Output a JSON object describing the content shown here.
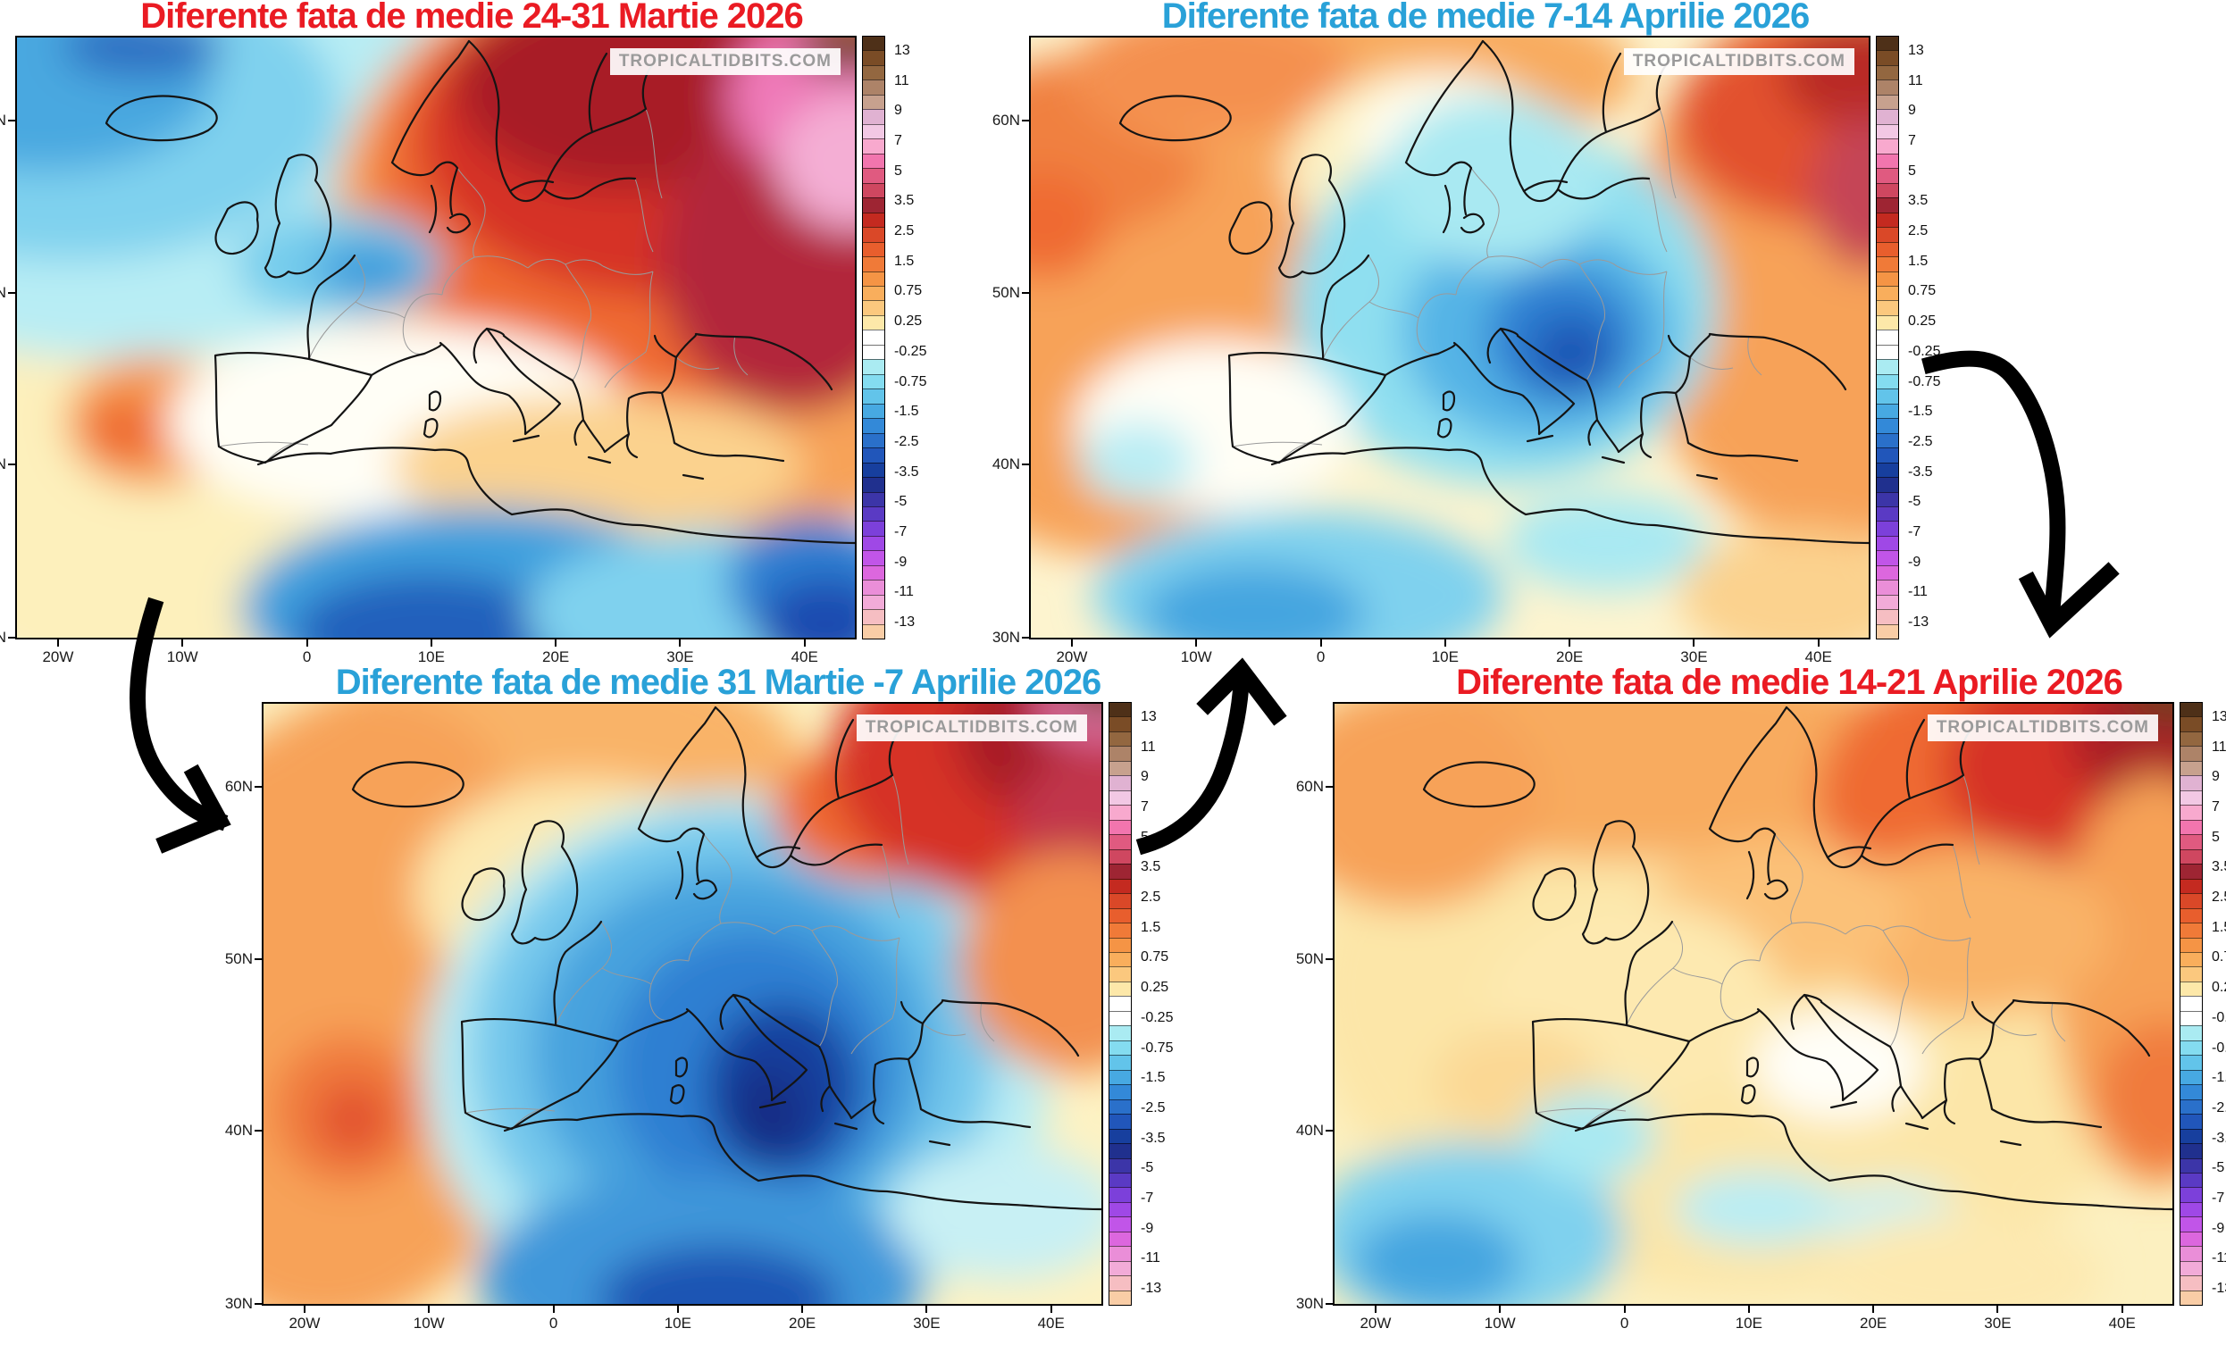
{
  "watermark": "TROPICALTIDBITS.COM",
  "colors": {
    "red_title": "#ea1b23",
    "blue_title": "#29a1d8",
    "annotation_arrow": "#000000",
    "map_frame": "#000000"
  },
  "axis": {
    "lon_labels": [
      "20W",
      "10W",
      "0",
      "10E",
      "20E",
      "30E",
      "40E"
    ],
    "lat_labels": [
      "60N",
      "50N",
      "40N",
      "30N"
    ]
  },
  "colorbar": {
    "tick_labels": [
      "13",
      "11",
      "9",
      "7",
      "5",
      "3.5",
      "2.5",
      "1.5",
      "0.75",
      "0.25",
      "-0.25",
      "-0.75",
      "-1.5",
      "-2.5",
      "-3.5",
      "-5",
      "-7",
      "-9",
      "-11",
      "-13"
    ],
    "cell_colors": [
      "#4e3018",
      "#7a4c26",
      "#936740",
      "#ad8368",
      "#c7a18e",
      "#e0b2d2",
      "#f2c8e4",
      "#f8a9ce",
      "#f275ae",
      "#e05a80",
      "#cf4760",
      "#9e2533",
      "#c42a20",
      "#da4828",
      "#e85e2d",
      "#f07a38",
      "#f59445",
      "#f9ae5c",
      "#fbc87e",
      "#fde8a9",
      "#ffffff",
      "#ffffff",
      "#aaebf2",
      "#84dcf0",
      "#62c4ea",
      "#47a9e2",
      "#3389d8",
      "#2a70ca",
      "#2156ba",
      "#173f9e",
      "#20308e",
      "#3c35a8",
      "#5a3ac4",
      "#7c40da",
      "#9f48e6",
      "#c155e8",
      "#dc67de",
      "#ea8ed8",
      "#f2abd8",
      "#f6bec2",
      "#f9cda6"
    ]
  },
  "panels": [
    {
      "title": "Diferente fata de medie 24-31 Martie 2026",
      "title_color": "#ea1b23"
    },
    {
      "title": "Diferente fata de medie 7-14 Aprilie 2026",
      "title_color": "#29a1d8"
    },
    {
      "title": "Diferente fata de medie 31 Martie -7 Aprilie 2026",
      "title_color": "#29a1d8"
    },
    {
      "title": "Diferente fata de medie 14-21 Aprilie 2026",
      "title_color": "#ea1b23"
    }
  ]
}
